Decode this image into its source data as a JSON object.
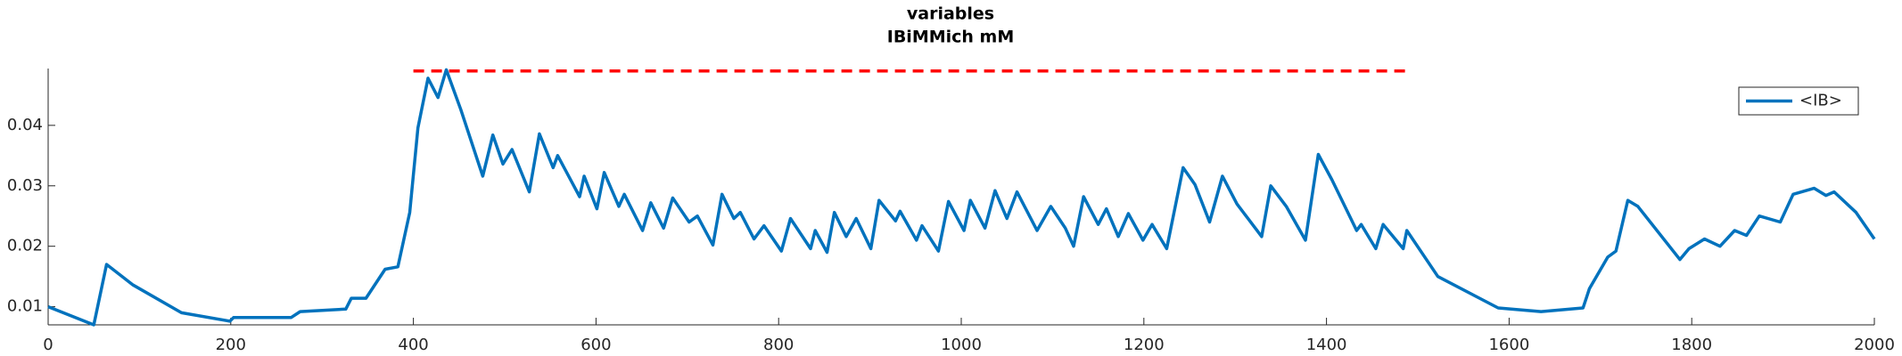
{
  "chart_data": {
    "type": "line",
    "title": [
      "variables",
      "IBiMMich mM"
    ],
    "x": [
      0,
      50,
      64,
      93,
      146,
      199,
      203,
      266,
      276,
      326,
      332,
      348,
      369,
      383,
      396,
      405,
      416,
      427,
      436,
      452,
      476,
      487,
      498,
      508,
      527,
      538,
      553,
      558,
      582,
      587,
      601,
      609,
      625,
      631,
      651,
      660,
      674,
      684,
      702,
      711,
      728,
      738,
      751,
      758,
      773,
      784,
      803,
      813,
      835,
      840,
      853,
      861,
      874,
      885,
      901,
      910,
      928,
      933,
      951,
      957,
      975,
      986,
      1003,
      1010,
      1026,
      1037,
      1050,
      1061,
      1083,
      1098,
      1114,
      1123,
      1134,
      1150,
      1159,
      1172,
      1183,
      1199,
      1209,
      1225,
      1243,
      1256,
      1272,
      1286,
      1302,
      1329,
      1339,
      1356,
      1377,
      1391,
      1406,
      1433,
      1438,
      1454,
      1462,
      1484,
      1488,
      1522,
      1588,
      1635,
      1681,
      1688,
      1708,
      1717,
      1730,
      1741,
      1787,
      1797,
      1814,
      1831,
      1847,
      1860,
      1874,
      1897,
      1911,
      1934,
      1947,
      1956,
      1980,
      2000
    ],
    "series": [
      {
        "name": "<IB>",
        "color": "#0072bd",
        "values": [
          0.01,
          0.007,
          0.017,
          0.0136,
          0.009,
          0.0076,
          0.0082,
          0.0082,
          0.0092,
          0.0096,
          0.0114,
          0.0114,
          0.0162,
          0.0166,
          0.0256,
          0.0396,
          0.0478,
          0.0446,
          0.0492,
          0.0426,
          0.0316,
          0.0384,
          0.0336,
          0.036,
          0.029,
          0.0386,
          0.033,
          0.035,
          0.0282,
          0.0316,
          0.0262,
          0.0322,
          0.0266,
          0.0286,
          0.0226,
          0.0272,
          0.023,
          0.028,
          0.024,
          0.025,
          0.0202,
          0.0286,
          0.0246,
          0.0256,
          0.0212,
          0.0234,
          0.0192,
          0.0246,
          0.0196,
          0.0226,
          0.019,
          0.0256,
          0.0216,
          0.0246,
          0.0196,
          0.0276,
          0.0242,
          0.0258,
          0.021,
          0.0234,
          0.0192,
          0.0274,
          0.0226,
          0.0276,
          0.023,
          0.0292,
          0.0246,
          0.029,
          0.0226,
          0.0266,
          0.023,
          0.02,
          0.0282,
          0.0236,
          0.0262,
          0.0216,
          0.0254,
          0.021,
          0.0236,
          0.0196,
          0.033,
          0.0302,
          0.024,
          0.0316,
          0.027,
          0.0216,
          0.03,
          0.0266,
          0.021,
          0.0352,
          0.031,
          0.0226,
          0.0236,
          0.0196,
          0.0236,
          0.0196,
          0.0226,
          0.015,
          0.0098,
          0.0092,
          0.0098,
          0.013,
          0.0182,
          0.0192,
          0.0276,
          0.0266,
          0.0178,
          0.0196,
          0.0212,
          0.02,
          0.0226,
          0.0218,
          0.025,
          0.024,
          0.0286,
          0.0296,
          0.0284,
          0.029,
          0.0256,
          0.0212
        ]
      }
    ],
    "reference_line": {
      "x": [
        400,
        1490
      ],
      "value": 0.049,
      "color": "#ff0000",
      "style": "dashed"
    },
    "xlim": [
      0,
      2000
    ],
    "xticks": [
      0,
      200,
      400,
      600,
      800,
      1000,
      1200,
      1400,
      1600,
      1800,
      2000
    ],
    "ylim": [
      0.007,
      0.0494
    ],
    "yticks": [
      0.01,
      0.02,
      0.03,
      0.04
    ],
    "legend": "top-right",
    "grid": false
  }
}
